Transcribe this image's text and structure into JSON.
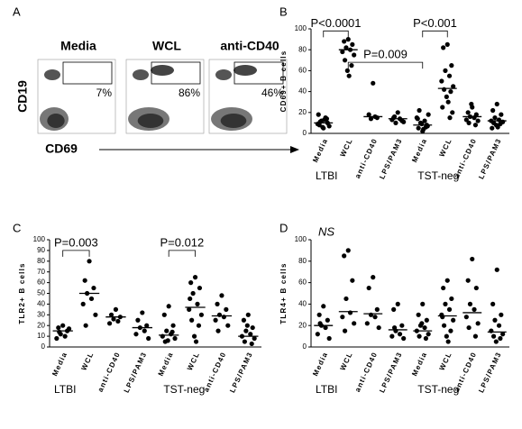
{
  "panel_a": {
    "letter": "A",
    "y_label": "CD19",
    "x_label": "CD69",
    "plots": [
      {
        "title": "Media",
        "percent": "7%"
      },
      {
        "title": "WCL",
        "percent": "86%"
      },
      {
        "title": "anti-CD40",
        "percent": "46%"
      }
    ]
  },
  "chart_data": [
    {
      "type": "dotplot",
      "letter": "B",
      "ylabel": "CD69+ B cells",
      "categories": [
        "Media",
        "WCL",
        "anti-CD40",
        "LPS/PAM3",
        "Media",
        "WCL",
        "anti-CD40",
        "LPS/PAM3"
      ],
      "groups": [
        "LTBI",
        "TST-neg"
      ],
      "values": [
        [
          5,
          8,
          10,
          12,
          15,
          9,
          7,
          11,
          14,
          6,
          13,
          18
        ],
        [
          90,
          88,
          85,
          82,
          80,
          78,
          75,
          70,
          65,
          60,
          55
        ],
        [
          48,
          18,
          15,
          14,
          16
        ],
        [
          20,
          15,
          12,
          10,
          14,
          13,
          11,
          16
        ],
        [
          2,
          5,
          8,
          10,
          12,
          15,
          18,
          22,
          6,
          9,
          4,
          14,
          7
        ],
        [
          85,
          82,
          65,
          60,
          55,
          50,
          45,
          42,
          40,
          35,
          30,
          25,
          20,
          15
        ],
        [
          25,
          20,
          18,
          16,
          15,
          13,
          12,
          10,
          8,
          28
        ],
        [
          28,
          22,
          18,
          15,
          13,
          12,
          11,
          10,
          9,
          8,
          6,
          5
        ]
      ],
      "medians": [
        10,
        80,
        16,
        14,
        8,
        43,
        16,
        12
      ],
      "annotations": [
        "P<0.0001",
        "P=0.009",
        "P<0.001"
      ],
      "ylim": [
        0,
        100
      ],
      "yticks": [
        0,
        20,
        40,
        60,
        80,
        100
      ],
      "color": "#000000"
    },
    {
      "type": "dotplot",
      "letter": "C",
      "ylabel": "TLR2+ B cells",
      "categories": [
        "Media",
        "WCL",
        "anti-CD40",
        "LPS/PAM3",
        "Media",
        "WCL",
        "anti-CD40",
        "LPS/PAM3"
      ],
      "groups": [
        "LTBI",
        "TST-neg"
      ],
      "values": [
        [
          20,
          18,
          15,
          12,
          10,
          8,
          17,
          14
        ],
        [
          80,
          62,
          55,
          50,
          45,
          40,
          30,
          20
        ],
        [
          35,
          30,
          28,
          26,
          24,
          22
        ],
        [
          32,
          25,
          20,
          18,
          15,
          12,
          8
        ],
        [
          38,
          30,
          20,
          15,
          12,
          10,
          8,
          5,
          14,
          6
        ],
        [
          65,
          60,
          55,
          50,
          40,
          35,
          30,
          25,
          20,
          10,
          5,
          45
        ],
        [
          48,
          40,
          35,
          30,
          28,
          25,
          20,
          15
        ],
        [
          30,
          25,
          18,
          15,
          12,
          10,
          8,
          5,
          3,
          20
        ]
      ],
      "medians": [
        15,
        50,
        28,
        18,
        11,
        37,
        29,
        10
      ],
      "annotations": [
        "P=0.003",
        "P=0.012"
      ],
      "ylim": [
        0,
        100
      ],
      "yticks": [
        0,
        10,
        20,
        30,
        40,
        50,
        60,
        70,
        80,
        90,
        100
      ],
      "color": "#000000"
    },
    {
      "type": "dotplot",
      "letter": "D",
      "ylabel": "TLR4+ B cells",
      "categories": [
        "Media",
        "WCL",
        "anti-CD40",
        "LPS/PAM3",
        "Media",
        "WCL",
        "anti-CD40",
        "LPS/PAM3"
      ],
      "groups": [
        "LTBI",
        "TST-neg"
      ],
      "values": [
        [
          38,
          30,
          25,
          20,
          18,
          12,
          8,
          22
        ],
        [
          90,
          85,
          62,
          45,
          32,
          28,
          22,
          15
        ],
        [
          65,
          55,
          35,
          30,
          28,
          22,
          18
        ],
        [
          40,
          35,
          20,
          15,
          12,
          10,
          8,
          18
        ],
        [
          40,
          30,
          25,
          20,
          18,
          15,
          12,
          10,
          8,
          22
        ],
        [
          62,
          55,
          45,
          40,
          35,
          30,
          25,
          20,
          15,
          10,
          5,
          28
        ],
        [
          82,
          62,
          55,
          40,
          35,
          28,
          22,
          18,
          10
        ],
        [
          72,
          40,
          30,
          25,
          20,
          15,
          12,
          10,
          8,
          5
        ]
      ],
      "medians": [
        20,
        33,
        31,
        16,
        15,
        29,
        32,
        14
      ],
      "annotations": [
        "NS"
      ],
      "ylim": [
        0,
        100
      ],
      "yticks": [
        0,
        20,
        40,
        60,
        80,
        100
      ],
      "color": "#000000"
    }
  ]
}
